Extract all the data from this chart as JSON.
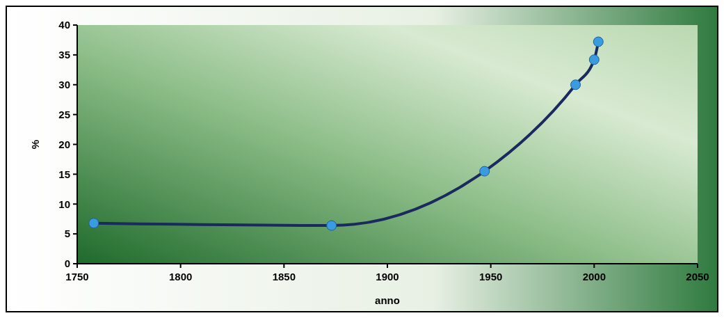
{
  "chart_data": {
    "type": "line",
    "xlabel": "anno",
    "ylabel": "%",
    "x": [
      1758,
      1873,
      1947,
      1991,
      2000,
      2002
    ],
    "series": [
      {
        "color": "#1b2a5e",
        "values": [
          6.8,
          6.4,
          15.5,
          30,
          34.2,
          37.2
        ]
      }
    ],
    "xlim": [
      1750,
      2050
    ],
    "xticks": [
      1750,
      1800,
      1850,
      1900,
      1950,
      2000,
      2050
    ],
    "ylim": [
      0,
      40
    ],
    "yticks": [
      0,
      5,
      10,
      15,
      20,
      25,
      30,
      35,
      40
    ],
    "marker": "circle",
    "line_style": "solid",
    "grid": false
  }
}
